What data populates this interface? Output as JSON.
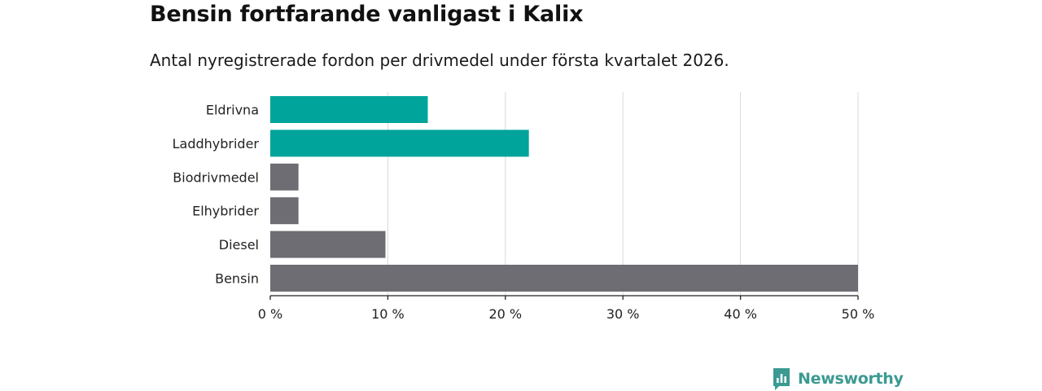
{
  "header": {
    "title": "Bensin fortfarande vanligast i Kalix",
    "subtitle": "Antal nyregistrerade fordon per drivmedel under första kvartalet 2026."
  },
  "brand": {
    "name": "Newsworthy",
    "color": "#3b9a92"
  },
  "colors": {
    "highlight": "#00a49a",
    "default": "#6e6d73",
    "grid": "#d9d9d9",
    "axis": "#222222"
  },
  "chart_data": {
    "type": "bar",
    "orientation": "horizontal",
    "title": "Bensin fortfarande vanligast i Kalix",
    "subtitle": "Antal nyregistrerade fordon per drivmedel under första kvartalet 2026.",
    "categories": [
      "Eldrivna",
      "Laddhybrider",
      "Biodrivmedel",
      "Elhybrider",
      "Diesel",
      "Bensin"
    ],
    "values": [
      13.4,
      22.0,
      2.4,
      2.4,
      9.8,
      50.0
    ],
    "highlighted": [
      true,
      true,
      false,
      false,
      false,
      false
    ],
    "unit": "%",
    "xlim": [
      0,
      50
    ],
    "xticks": [
      0,
      10,
      20,
      30,
      40,
      50
    ],
    "xtick_labels": [
      "0 %",
      "10 %",
      "20 %",
      "30 %",
      "40 %",
      "50 %"
    ],
    "grid": true,
    "xlabel": "",
    "ylabel": ""
  }
}
